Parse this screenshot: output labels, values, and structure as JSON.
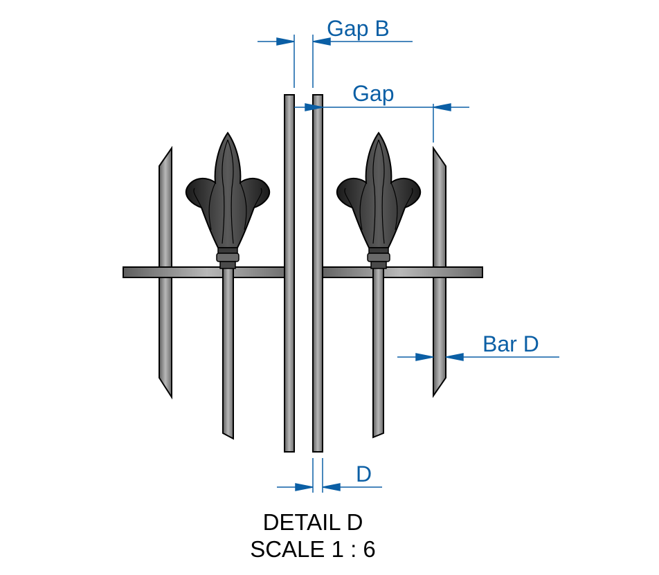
{
  "labels": {
    "gap_b": "Gap B",
    "gap": "Gap",
    "bar_d": "Bar D",
    "d": "D"
  },
  "title": {
    "line1": "DETAIL D",
    "line2": "SCALE 1 : 6"
  },
  "colors": {
    "dimension": "#0b5fa5",
    "text": "#000000",
    "outline": "#000000",
    "bar_fill": "#8c8c8c",
    "finial_fill": "#2a2a2a"
  }
}
